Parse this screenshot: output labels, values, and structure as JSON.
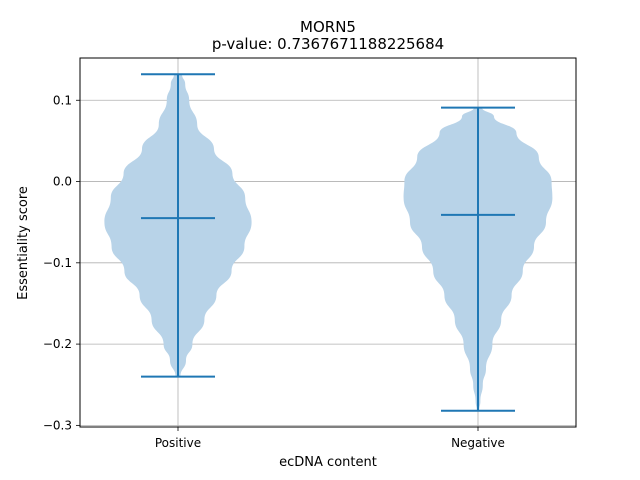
{
  "chart_data": {
    "type": "violin",
    "title": "MORN5",
    "subtitle": "p-value: 0.7367671188225684",
    "xlabel": "ecDNA content",
    "ylabel": "Essentiality score",
    "categories": [
      "Positive",
      "Negative"
    ],
    "ylim": [
      -0.302,
      0.152
    ],
    "yticks": [
      0.1,
      0.0,
      -0.1,
      -0.2,
      -0.3
    ],
    "ytick_labels": [
      "0.1",
      "0.0",
      "−0.1",
      "−0.2",
      "−0.3"
    ],
    "grid": true,
    "colors": {
      "body": "#b8d3e8",
      "line": "#1f77b4",
      "grid": "#b0b0b0"
    },
    "series": [
      {
        "category": "Positive",
        "max": 0.132,
        "median": -0.045,
        "min": -0.24,
        "density": [
          [
            0.132,
            0.05
          ],
          [
            0.12,
            0.09
          ],
          [
            0.1,
            0.14
          ],
          [
            0.07,
            0.24
          ],
          [
            0.04,
            0.45
          ],
          [
            0.01,
            0.68
          ],
          [
            -0.02,
            0.84
          ],
          [
            -0.05,
            0.92
          ],
          [
            -0.08,
            0.83
          ],
          [
            -0.11,
            0.67
          ],
          [
            -0.14,
            0.48
          ],
          [
            -0.17,
            0.33
          ],
          [
            -0.2,
            0.18
          ],
          [
            -0.22,
            0.1
          ],
          [
            -0.24,
            0.03
          ]
        ]
      },
      {
        "category": "Negative",
        "max": 0.091,
        "median": -0.041,
        "min": -0.282,
        "density": [
          [
            0.091,
            0.05
          ],
          [
            0.08,
            0.2
          ],
          [
            0.06,
            0.48
          ],
          [
            0.03,
            0.76
          ],
          [
            0.0,
            0.92
          ],
          [
            -0.02,
            0.93
          ],
          [
            -0.05,
            0.85
          ],
          [
            -0.08,
            0.7
          ],
          [
            -0.11,
            0.56
          ],
          [
            -0.14,
            0.42
          ],
          [
            -0.17,
            0.29
          ],
          [
            -0.2,
            0.18
          ],
          [
            -0.23,
            0.1
          ],
          [
            -0.25,
            0.06
          ],
          [
            -0.27,
            0.03
          ],
          [
            -0.282,
            0.015
          ]
        ]
      }
    ]
  }
}
